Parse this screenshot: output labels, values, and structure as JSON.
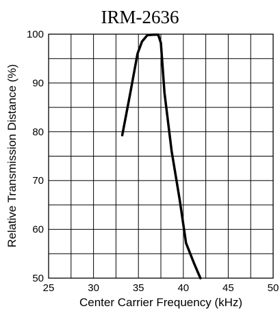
{
  "chart_data": {
    "type": "line",
    "title": "IRM-2636",
    "xlabel": "Center Carrier Frequency (kHz)",
    "ylabel": "Relative Transmission Distance (%)",
    "xlim": [
      25,
      50
    ],
    "ylim": [
      50,
      100
    ],
    "x_ticks": [
      "25",
      "30",
      "35",
      "40",
      "45",
      "50"
    ],
    "y_ticks": [
      "50",
      "60",
      "70",
      "80",
      "90",
      "100"
    ],
    "grid": true,
    "series": [
      {
        "values_x": [
          33.2,
          34.1,
          34.9,
          35.4,
          36.0,
          36.7,
          37.2,
          37.5,
          37.9,
          38.7,
          39.6,
          40.3,
          41.2,
          41.9
        ],
        "values_y": [
          79.3,
          88.0,
          96.0,
          98.5,
          99.8,
          99.9,
          99.9,
          98.2,
          88.0,
          76.0,
          66.0,
          57.2,
          53.0,
          50.0
        ]
      }
    ]
  }
}
